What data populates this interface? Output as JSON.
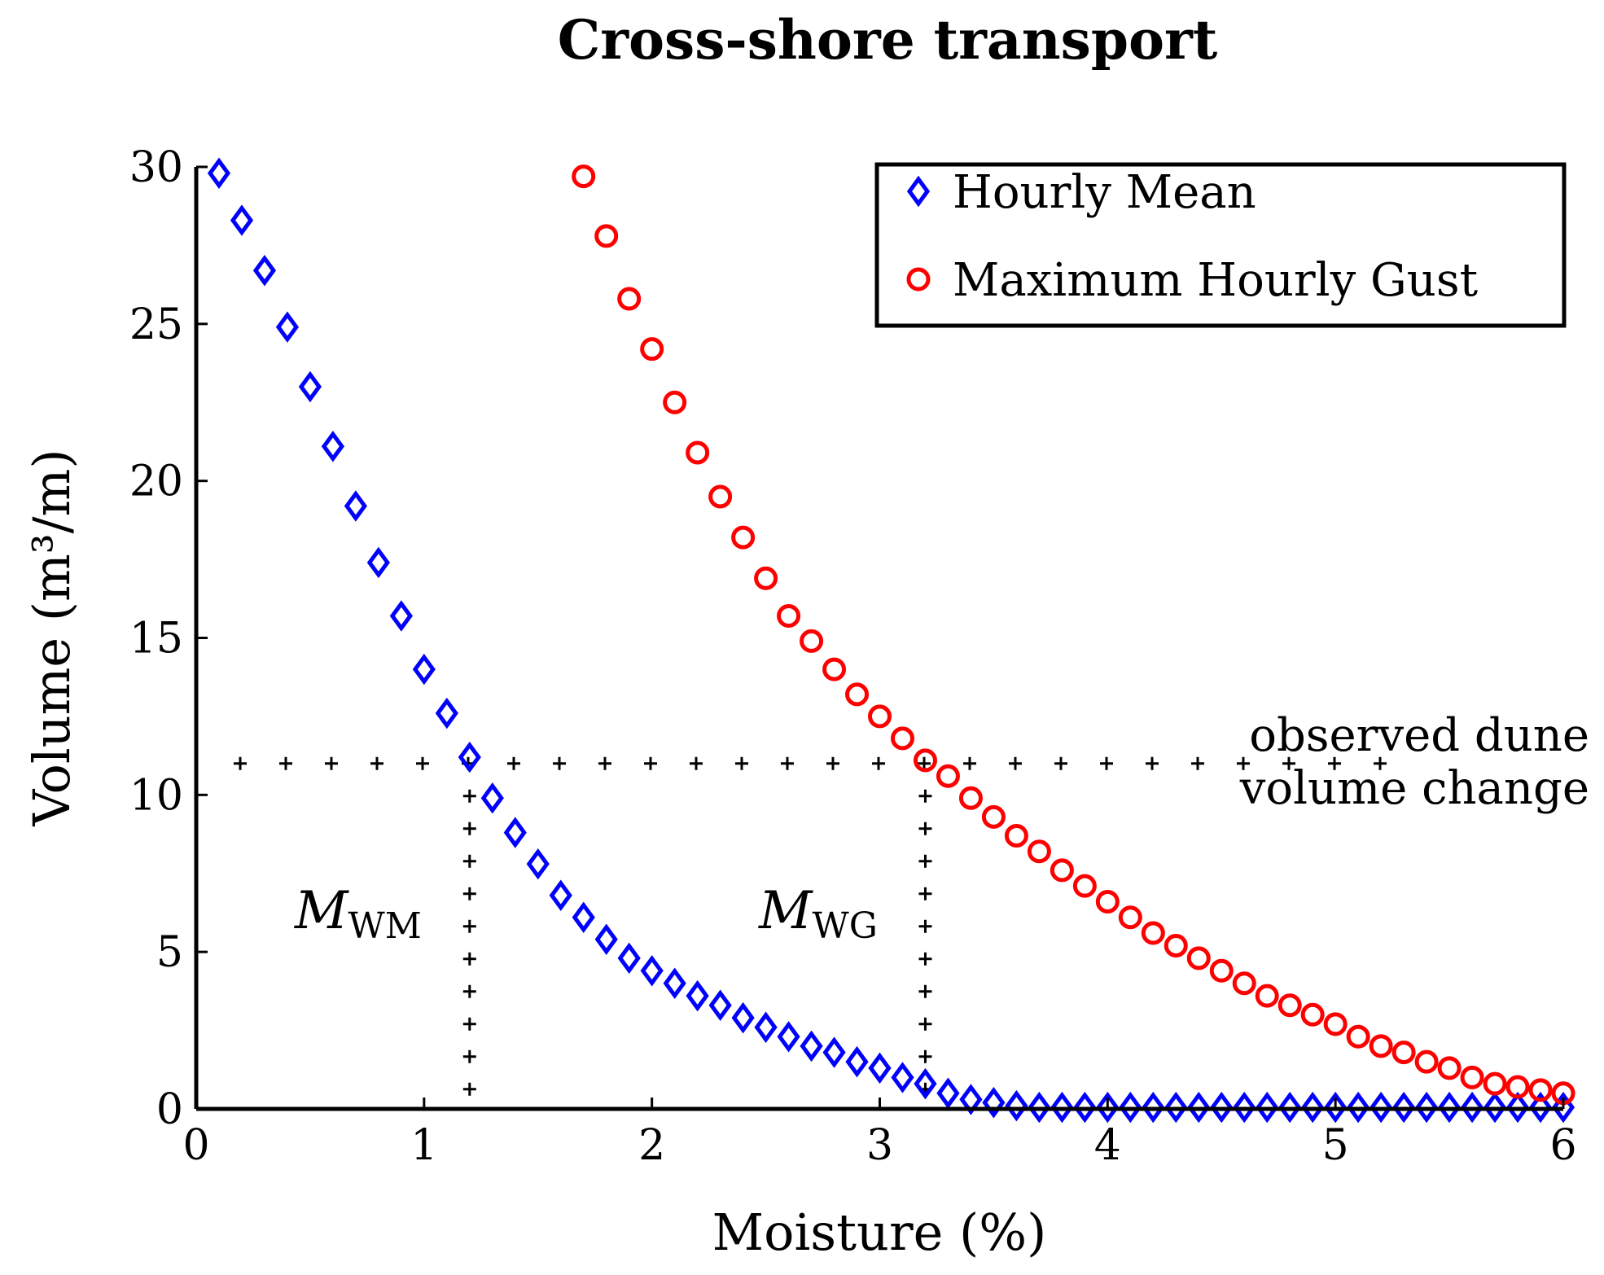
{
  "chart_data": {
    "type": "scatter",
    "title": "Cross-shore transport",
    "xlabel": "Moisture (%)",
    "ylabel": "Volume (m³/m)",
    "xlim": [
      0,
      6
    ],
    "ylim": [
      0,
      30
    ],
    "xticks": [
      0,
      1,
      2,
      3,
      4,
      5,
      6
    ],
    "yticks": [
      0,
      5,
      10,
      15,
      20,
      25,
      30
    ],
    "grid": false,
    "legend_position": "top-right",
    "series": [
      {
        "name": "Hourly Mean",
        "marker": "diamond",
        "color": "#0000ff",
        "x": [
          0.1,
          0.2,
          0.3,
          0.4,
          0.5,
          0.6,
          0.7,
          0.8,
          0.9,
          1.0,
          1.1,
          1.2,
          1.3,
          1.4,
          1.5,
          1.6,
          1.7,
          1.8,
          1.9,
          2.0,
          2.1,
          2.2,
          2.3,
          2.4,
          2.5,
          2.6,
          2.7,
          2.8,
          2.9,
          3.0,
          3.1,
          3.2,
          3.3,
          3.4,
          3.5,
          3.6,
          3.7,
          3.8,
          3.9,
          4.0,
          4.1,
          4.2,
          4.3,
          4.4,
          4.5,
          4.6,
          4.7,
          4.8,
          4.9,
          5.0,
          5.1,
          5.2,
          5.3,
          5.4,
          5.5,
          5.6,
          5.7,
          5.8,
          5.9,
          6.0
        ],
        "y": [
          29.8,
          28.3,
          26.7,
          24.9,
          23.0,
          21.1,
          19.2,
          17.4,
          15.7,
          14.0,
          12.6,
          11.2,
          9.9,
          8.8,
          7.8,
          6.8,
          6.1,
          5.4,
          4.8,
          4.4,
          4.0,
          3.6,
          3.3,
          2.9,
          2.6,
          2.3,
          2.0,
          1.8,
          1.5,
          1.3,
          1.0,
          0.8,
          0.5,
          0.3,
          0.2,
          0.1,
          0.05,
          0.05,
          0.05,
          0.05,
          0.05,
          0.05,
          0.05,
          0.05,
          0.05,
          0.05,
          0.05,
          0.05,
          0.05,
          0.05,
          0.05,
          0.05,
          0.05,
          0.05,
          0.05,
          0.05,
          0.05,
          0.05,
          0.05,
          0.05
        ]
      },
      {
        "name": "Maximum Hourly Gust",
        "marker": "circle",
        "color": "#ff0000",
        "x": [
          1.7,
          1.8,
          1.9,
          2.0,
          2.1,
          2.2,
          2.3,
          2.4,
          2.5,
          2.6,
          2.7,
          2.8,
          2.9,
          3.0,
          3.1,
          3.2,
          3.3,
          3.4,
          3.5,
          3.6,
          3.7,
          3.8,
          3.9,
          4.0,
          4.1,
          4.2,
          4.3,
          4.4,
          4.5,
          4.6,
          4.7,
          4.8,
          4.9,
          5.0,
          5.1,
          5.2,
          5.3,
          5.4,
          5.5,
          5.6,
          5.7,
          5.8,
          5.9,
          6.0
        ],
        "y": [
          29.7,
          27.8,
          25.8,
          24.2,
          22.5,
          20.9,
          19.5,
          18.2,
          16.9,
          15.7,
          14.9,
          14.0,
          13.2,
          12.5,
          11.8,
          11.1,
          10.6,
          9.9,
          9.3,
          8.7,
          8.2,
          7.6,
          7.1,
          6.6,
          6.1,
          5.6,
          5.2,
          4.8,
          4.4,
          4.0,
          3.6,
          3.3,
          3.0,
          2.7,
          2.3,
          2.0,
          1.8,
          1.5,
          1.3,
          1.0,
          0.8,
          0.7,
          0.6,
          0.5
        ]
      }
    ],
    "reference_lines": {
      "horizontal_y": 11,
      "vertical_x": [
        1.2,
        3.2
      ],
      "style": "plus-markers"
    },
    "annotations": {
      "observed_line1": "observed dune",
      "observed_line2": "volume change",
      "m_symbol": "M",
      "m_wm_sub": "WM",
      "m_wg_sub": "WG"
    }
  }
}
